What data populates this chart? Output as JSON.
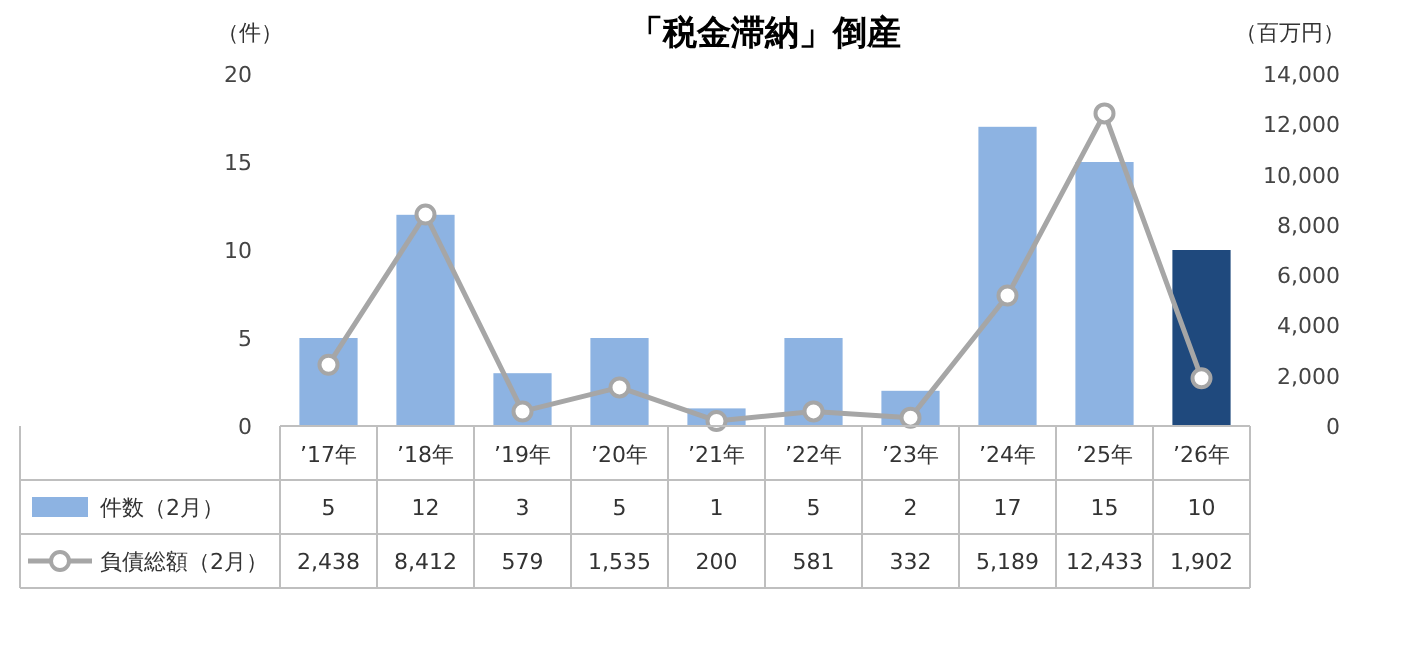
{
  "chart_data": {
    "type": "bar",
    "title": "「税金滞納」倒産",
    "ylabel": "（件）",
    "y2label": "（百万円）",
    "categories": [
      "’17年",
      "’18年",
      "’19年",
      "’20年",
      "’21年",
      "’22年",
      "’23年",
      "’24年",
      "’25年",
      "’26年"
    ],
    "series": [
      {
        "name": "件数（2月）",
        "color": "#8db3e2",
        "colors": [
          "#8db3e2",
          "#8db3e2",
          "#8db3e2",
          "#8db3e2",
          "#8db3e2",
          "#8db3e2",
          "#8db3e2",
          "#8db3e2",
          "#8db3e2",
          "#1f497d"
        ],
        "values": [
          5,
          12,
          3,
          5,
          1,
          5,
          2,
          17,
          15,
          10
        ],
        "value_labels": [
          "5",
          "12",
          "3",
          "5",
          "1",
          "5",
          "2",
          "17",
          "15",
          "10"
        ]
      },
      {
        "name": "負債総額（2月）",
        "type": "line",
        "axis": "y2",
        "color": "#a6a6a6",
        "marker": "circle",
        "values": [
          2438,
          8412,
          579,
          1535,
          200,
          581,
          332,
          5189,
          12433,
          1902
        ],
        "value_labels": [
          "2,438",
          "8,412",
          "579",
          "1,535",
          "200",
          "581",
          "332",
          "5,189",
          "12,433",
          "1,902"
        ]
      }
    ],
    "ylim": [
      0,
      20
    ],
    "yticks": [
      0,
      5,
      10,
      15,
      20
    ],
    "y2lim": [
      0,
      14000
    ],
    "y2ticks": [
      0,
      {
        "value": 2000,
        "label": "2,000"
      },
      {
        "value": 4000,
        "label": "4,000"
      },
      {
        "value": 6000,
        "label": "6,000"
      },
      {
        "value": 8000,
        "label": "8,000"
      },
      {
        "value": 10000,
        "label": "10,000"
      },
      {
        "value": 12000,
        "label": "12,000"
      },
      {
        "value": 14000,
        "label": "14,000"
      }
    ],
    "legend": "bottom"
  }
}
